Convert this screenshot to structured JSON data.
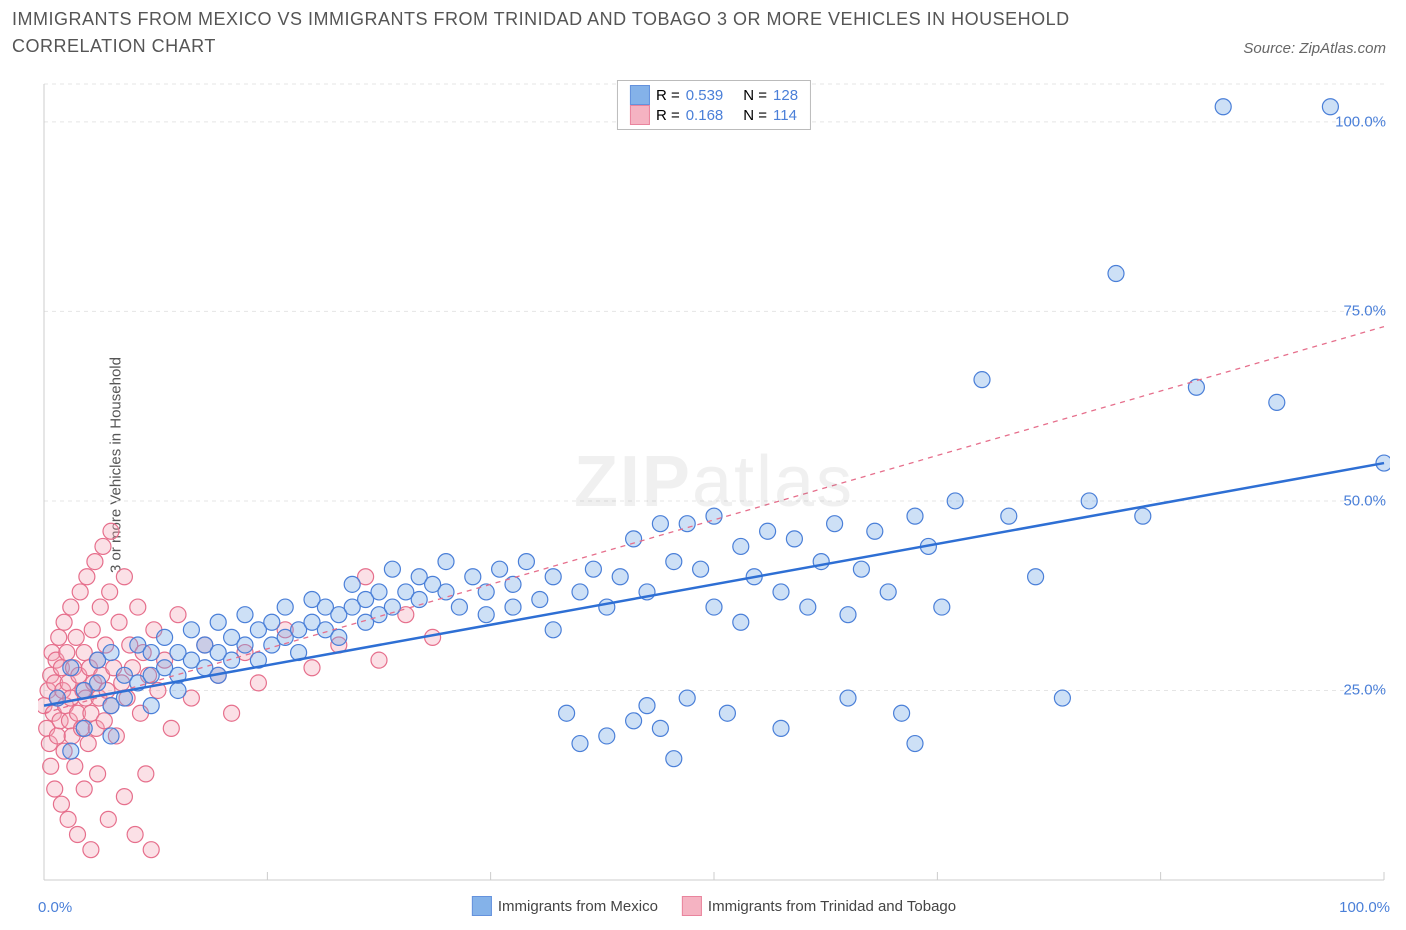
{
  "title": "IMMIGRANTS FROM MEXICO VS IMMIGRANTS FROM TRINIDAD AND TOBAGO 3 OR MORE VEHICLES IN HOUSEHOLD CORRELATION CHART",
  "source_label": "Source: ",
  "source_name": "ZipAtlas.com",
  "watermark_a": "ZIP",
  "watermark_b": "atlas",
  "ylabel": "3 or more Vehicles in Household",
  "chart": {
    "type": "scatter",
    "background_color": "#ffffff",
    "grid_color": "#e5e5e5",
    "axis_color": "#cccccc",
    "xlim": [
      0,
      100
    ],
    "ylim": [
      0,
      105
    ],
    "x_tick_positions": [
      0,
      16.67,
      33.33,
      50,
      66.67,
      83.33,
      100
    ],
    "y_tick_positions": [
      25,
      50,
      75,
      100
    ],
    "y_tick_labels": [
      "25.0%",
      "50.0%",
      "75.0%",
      "100.0%"
    ],
    "x_min_label": "0.0%",
    "x_max_label": "100.0%",
    "tick_label_color": "#4a7fd8",
    "grid_dash": "4 4",
    "marker_radius": 8,
    "marker_stroke_width": 1.2,
    "marker_fill_opacity": 0.35,
    "series": [
      {
        "name": "Immigrants from Mexico",
        "color": "#6fa5e6",
        "stroke": "#4a7fd8",
        "R_label": "R =",
        "R": "0.539",
        "N_label": "N =",
        "N": "128",
        "trend": {
          "x1": 0,
          "y1": 23,
          "x2": 100,
          "y2": 55,
          "color": "#2e6fd4",
          "width": 2.5,
          "dash": "none"
        },
        "points": [
          [
            1,
            24
          ],
          [
            2,
            17
          ],
          [
            2,
            28
          ],
          [
            3,
            25
          ],
          [
            3,
            20
          ],
          [
            4,
            26
          ],
          [
            4,
            29
          ],
          [
            5,
            23
          ],
          [
            5,
            30
          ],
          [
            5,
            19
          ],
          [
            6,
            27
          ],
          [
            6,
            24
          ],
          [
            7,
            31
          ],
          [
            7,
            26
          ],
          [
            8,
            27
          ],
          [
            8,
            23
          ],
          [
            8,
            30
          ],
          [
            9,
            28
          ],
          [
            9,
            32
          ],
          [
            10,
            25
          ],
          [
            10,
            30
          ],
          [
            10,
            27
          ],
          [
            11,
            29
          ],
          [
            11,
            33
          ],
          [
            12,
            28
          ],
          [
            12,
            31
          ],
          [
            13,
            30
          ],
          [
            13,
            27
          ],
          [
            13,
            34
          ],
          [
            14,
            32
          ],
          [
            14,
            29
          ],
          [
            15,
            31
          ],
          [
            15,
            35
          ],
          [
            16,
            33
          ],
          [
            16,
            29
          ],
          [
            17,
            34
          ],
          [
            17,
            31
          ],
          [
            18,
            32
          ],
          [
            18,
            36
          ],
          [
            19,
            33
          ],
          [
            19,
            30
          ],
          [
            20,
            34
          ],
          [
            20,
            37
          ],
          [
            21,
            33
          ],
          [
            21,
            36
          ],
          [
            22,
            35
          ],
          [
            22,
            32
          ],
          [
            23,
            36
          ],
          [
            23,
            39
          ],
          [
            24,
            37
          ],
          [
            24,
            34
          ],
          [
            25,
            38
          ],
          [
            25,
            35
          ],
          [
            26,
            41
          ],
          [
            26,
            36
          ],
          [
            27,
            38
          ],
          [
            28,
            37
          ],
          [
            28,
            40
          ],
          [
            29,
            39
          ],
          [
            30,
            38
          ],
          [
            30,
            42
          ],
          [
            31,
            36
          ],
          [
            32,
            40
          ],
          [
            33,
            38
          ],
          [
            33,
            35
          ],
          [
            34,
            41
          ],
          [
            35,
            36
          ],
          [
            35,
            39
          ],
          [
            36,
            42
          ],
          [
            37,
            37
          ],
          [
            38,
            40
          ],
          [
            38,
            33
          ],
          [
            39,
            22
          ],
          [
            40,
            38
          ],
          [
            40,
            18
          ],
          [
            41,
            41
          ],
          [
            42,
            19
          ],
          [
            42,
            36
          ],
          [
            43,
            40
          ],
          [
            44,
            21
          ],
          [
            44,
            45
          ],
          [
            45,
            23
          ],
          [
            45,
            38
          ],
          [
            46,
            47
          ],
          [
            46,
            20
          ],
          [
            47,
            42
          ],
          [
            47,
            16
          ],
          [
            48,
            47
          ],
          [
            48,
            24
          ],
          [
            49,
            41
          ],
          [
            50,
            48
          ],
          [
            50,
            36
          ],
          [
            51,
            22
          ],
          [
            52,
            44
          ],
          [
            52,
            34
          ],
          [
            53,
            40
          ],
          [
            54,
            46
          ],
          [
            55,
            38
          ],
          [
            55,
            20
          ],
          [
            56,
            45
          ],
          [
            57,
            36
          ],
          [
            58,
            42
          ],
          [
            59,
            47
          ],
          [
            60,
            35
          ],
          [
            60,
            24
          ],
          [
            61,
            41
          ],
          [
            62,
            46
          ],
          [
            63,
            38
          ],
          [
            64,
            22
          ],
          [
            65,
            48
          ],
          [
            65,
            18
          ],
          [
            66,
            44
          ],
          [
            67,
            36
          ],
          [
            68,
            50
          ],
          [
            70,
            66
          ],
          [
            72,
            48
          ],
          [
            74,
            40
          ],
          [
            76,
            24
          ],
          [
            78,
            50
          ],
          [
            80,
            80
          ],
          [
            82,
            48
          ],
          [
            86,
            65
          ],
          [
            88,
            102
          ],
          [
            92,
            63
          ],
          [
            96,
            102
          ],
          [
            100,
            55
          ]
        ]
      },
      {
        "name": "Immigrants from Trinidad and Tobago",
        "color": "#f4a6b8",
        "stroke": "#e66f8c",
        "R_label": "R =",
        "R": "0.168",
        "N_label": "N =",
        "N": "114",
        "trend": {
          "x1": 0,
          "y1": 22,
          "x2": 100,
          "y2": 73,
          "color": "#e66f8c",
          "width": 1.3,
          "dash": "5 5"
        },
        "points": [
          [
            0,
            23
          ],
          [
            0.2,
            20
          ],
          [
            0.3,
            25
          ],
          [
            0.4,
            18
          ],
          [
            0.5,
            27
          ],
          [
            0.5,
            15
          ],
          [
            0.6,
            30
          ],
          [
            0.7,
            22
          ],
          [
            0.8,
            26
          ],
          [
            0.8,
            12
          ],
          [
            0.9,
            29
          ],
          [
            1,
            24
          ],
          [
            1,
            19
          ],
          [
            1.1,
            32
          ],
          [
            1.2,
            21
          ],
          [
            1.3,
            28
          ],
          [
            1.3,
            10
          ],
          [
            1.4,
            25
          ],
          [
            1.5,
            34
          ],
          [
            1.5,
            17
          ],
          [
            1.6,
            23
          ],
          [
            1.7,
            30
          ],
          [
            1.8,
            26
          ],
          [
            1.8,
            8
          ],
          [
            1.9,
            21
          ],
          [
            2,
            36
          ],
          [
            2,
            24
          ],
          [
            2.1,
            19
          ],
          [
            2.2,
            28
          ],
          [
            2.3,
            15
          ],
          [
            2.4,
            32
          ],
          [
            2.5,
            22
          ],
          [
            2.5,
            6
          ],
          [
            2.6,
            27
          ],
          [
            2.7,
            38
          ],
          [
            2.8,
            20
          ],
          [
            2.9,
            25
          ],
          [
            3,
            30
          ],
          [
            3,
            12
          ],
          [
            3.1,
            24
          ],
          [
            3.2,
            40
          ],
          [
            3.3,
            18
          ],
          [
            3.4,
            28
          ],
          [
            3.5,
            22
          ],
          [
            3.5,
            4
          ],
          [
            3.6,
            33
          ],
          [
            3.7,
            26
          ],
          [
            3.8,
            42
          ],
          [
            3.9,
            20
          ],
          [
            4,
            29
          ],
          [
            4,
            14
          ],
          [
            4.1,
            24
          ],
          [
            4.2,
            36
          ],
          [
            4.3,
            27
          ],
          [
            4.4,
            44
          ],
          [
            4.5,
            21
          ],
          [
            4.6,
            31
          ],
          [
            4.7,
            25
          ],
          [
            4.8,
            8
          ],
          [
            4.9,
            38
          ],
          [
            5,
            23
          ],
          [
            5,
            46
          ],
          [
            5.2,
            28
          ],
          [
            5.4,
            19
          ],
          [
            5.6,
            34
          ],
          [
            5.8,
            26
          ],
          [
            6,
            40
          ],
          [
            6,
            11
          ],
          [
            6.2,
            24
          ],
          [
            6.4,
            31
          ],
          [
            6.6,
            28
          ],
          [
            6.8,
            6
          ],
          [
            7,
            36
          ],
          [
            7.2,
            22
          ],
          [
            7.4,
            30
          ],
          [
            7.6,
            14
          ],
          [
            7.8,
            27
          ],
          [
            8,
            4
          ],
          [
            8.2,
            33
          ],
          [
            8.5,
            25
          ],
          [
            9,
            29
          ],
          [
            9.5,
            20
          ],
          [
            10,
            35
          ],
          [
            11,
            24
          ],
          [
            12,
            31
          ],
          [
            13,
            27
          ],
          [
            14,
            22
          ],
          [
            15,
            30
          ],
          [
            16,
            26
          ],
          [
            18,
            33
          ],
          [
            20,
            28
          ],
          [
            22,
            31
          ],
          [
            24,
            40
          ],
          [
            25,
            29
          ],
          [
            27,
            35
          ],
          [
            29,
            32
          ]
        ]
      }
    ]
  },
  "legend_bottom": {
    "a": "Immigrants from Mexico",
    "b": "Immigrants from Trinidad and Tobago"
  }
}
